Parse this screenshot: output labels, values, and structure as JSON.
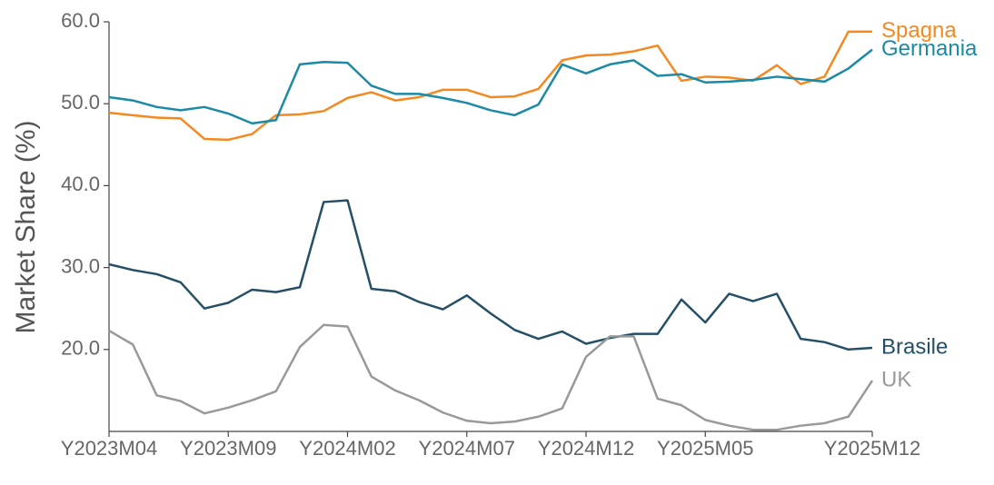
{
  "chart_data": {
    "type": "line",
    "y_label": "Market Share (%)",
    "categories": [
      "Y2023M04",
      "Y2023M05",
      "Y2023M06",
      "Y2023M07",
      "Y2023M08",
      "Y2023M09",
      "Y2023M10",
      "Y2023M11",
      "Y2023M12",
      "Y2024M01",
      "Y2024M02",
      "Y2024M03",
      "Y2024M04",
      "Y2024M05",
      "Y2024M06",
      "Y2024M07",
      "Y2024M08",
      "Y2024M09",
      "Y2024M10",
      "Y2024M11",
      "Y2024M12",
      "Y2025M01",
      "Y2025M02",
      "Y2025M03",
      "Y2025M04",
      "Y2025M05",
      "Y2025M06",
      "Y2025M07",
      "Y2025M08",
      "Y2025M09",
      "Y2025M10",
      "Y2025M11",
      "Y2025M12"
    ],
    "xticks": [
      "Y2023M04",
      "Y2023M09",
      "Y2024M02",
      "Y2024M07",
      "Y2024M12",
      "Y2025M05",
      "Y2025M12"
    ],
    "ylim": [
      10,
      60
    ],
    "yticks": [
      {
        "value": 20,
        "label": "20.0"
      },
      {
        "value": 30,
        "label": "30.0"
      },
      {
        "value": 40,
        "label": "40.0"
      },
      {
        "value": 50,
        "label": "50.0"
      },
      {
        "value": 60,
        "label": "60.0"
      }
    ],
    "legend": "line-end",
    "series": [
      {
        "name": "Spagna",
        "color": "#f5881f",
        "values": [
          48.9,
          48.6,
          48.3,
          48.2,
          45.7,
          45.6,
          46.3,
          48.6,
          48.7,
          49.1,
          50.7,
          51.4,
          50.4,
          50.8,
          51.7,
          51.7,
          50.8,
          50.9,
          51.8,
          55.3,
          55.9,
          56.0,
          56.4,
          57.1,
          52.8,
          53.3,
          53.2,
          52.8,
          54.7,
          52.4,
          53.3,
          58.8,
          58.8
        ]
      },
      {
        "name": "Germania",
        "color": "#1a8aa6",
        "values": [
          50.8,
          50.4,
          49.6,
          49.2,
          49.6,
          48.8,
          47.6,
          48.0,
          54.8,
          55.1,
          55.0,
          52.2,
          51.2,
          51.2,
          50.7,
          50.1,
          49.2,
          48.6,
          49.9,
          54.8,
          53.7,
          54.8,
          55.3,
          53.4,
          53.6,
          52.6,
          52.7,
          52.9,
          53.3,
          53.0,
          52.7,
          54.3,
          56.6
        ]
      },
      {
        "name": "Brasile",
        "color": "#254f66",
        "values": [
          30.4,
          29.7,
          29.2,
          28.2,
          25.0,
          25.7,
          27.3,
          27.0,
          27.6,
          38.0,
          38.2,
          27.4,
          27.1,
          25.8,
          24.9,
          26.6,
          24.4,
          22.4,
          21.3,
          22.2,
          20.7,
          21.4,
          21.9,
          21.9,
          26.1,
          23.3,
          26.8,
          25.9,
          26.8,
          21.3,
          20.9,
          20.0,
          20.2
        ]
      },
      {
        "name": "UK",
        "color": "#999999",
        "values": [
          22.3,
          20.6,
          14.4,
          13.7,
          12.2,
          12.9,
          13.8,
          14.9,
          20.3,
          23.0,
          22.8,
          16.7,
          15.0,
          13.8,
          12.3,
          11.3,
          11.0,
          11.2,
          11.8,
          12.8,
          19.1,
          21.6,
          21.6,
          14.0,
          13.2,
          11.4,
          10.7,
          10.2,
          10.2,
          10.7,
          11.0,
          11.8,
          16.2
        ]
      }
    ]
  }
}
